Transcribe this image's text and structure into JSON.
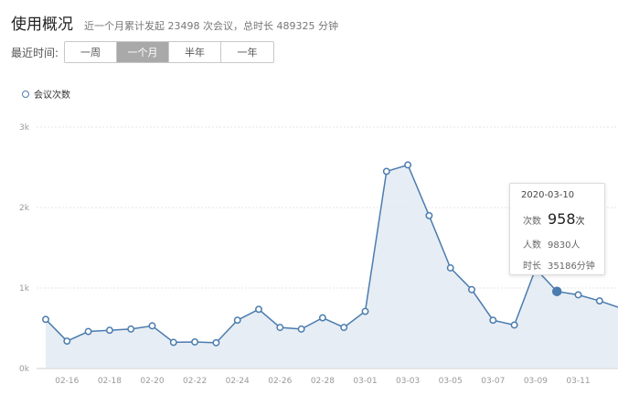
{
  "header": {
    "title": "使用概况",
    "summary": "近一个月累计发起 23498 次会议，总时长 489325 分钟"
  },
  "filter": {
    "label": "最近时间:",
    "options": [
      "一周",
      "一个月",
      "半年",
      "一年"
    ],
    "selected": "一个月"
  },
  "legend": {
    "label": "会议次数"
  },
  "chart_data": {
    "type": "area",
    "series": [
      {
        "name": "会议次数",
        "values": [
          610,
          340,
          460,
          475,
          490,
          530,
          325,
          330,
          320,
          600,
          735,
          510,
          490,
          630,
          510,
          710,
          2450,
          2530,
          1900,
          1250,
          980,
          600,
          540,
          1240,
          958,
          915,
          840,
          750
        ]
      }
    ],
    "x": [
      "02-15",
      "02-16",
      "02-17",
      "02-18",
      "02-19",
      "02-20",
      "02-21",
      "02-22",
      "02-23",
      "02-24",
      "02-25",
      "02-26",
      "02-27",
      "02-28",
      "02-29",
      "03-01",
      "03-02",
      "03-03",
      "03-04",
      "03-05",
      "03-06",
      "03-07",
      "03-08",
      "03-09",
      "03-10",
      "03-11",
      "03-12",
      "03-13"
    ],
    "x_tick_labels": [
      "02-16",
      "02-18",
      "02-20",
      "02-22",
      "02-24",
      "02-26",
      "02-28",
      "03-01",
      "03-03",
      "03-05",
      "03-07",
      "03-09",
      "03-11"
    ],
    "y_ticks": [
      0,
      1000,
      2000,
      3000
    ],
    "y_tick_labels": [
      "0k",
      "1k",
      "2k",
      "3k"
    ],
    "ylim": [
      0,
      3000
    ],
    "grid": true,
    "highlighted_index": 24,
    "colors": {
      "line": "#4a7cae",
      "fill": "#dde6f0",
      "grid": "#e6e6e6"
    }
  },
  "tooltip": {
    "date": "2020-03-10",
    "count_label": "次数",
    "count_value": "958",
    "count_unit": "次",
    "people_label": "人数",
    "people_value": "9830人",
    "duration_label": "时长",
    "duration_value": "35186分钟"
  }
}
